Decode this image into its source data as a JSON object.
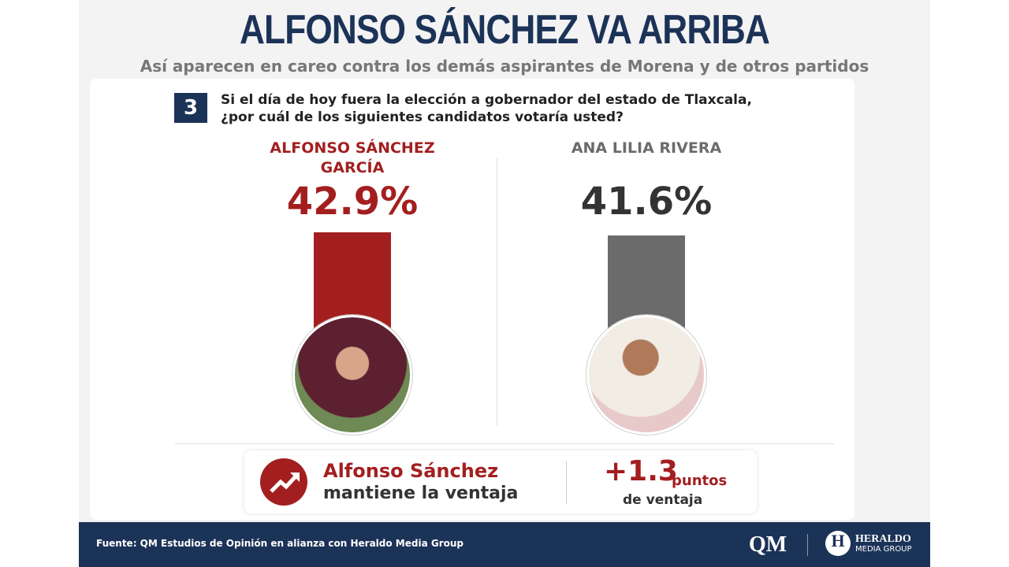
{
  "chart_data": {
    "type": "bar",
    "title": "ALFONSO SÁNCHEZ VA ARRIBA",
    "subtitle": "Así aparecen en careo contra los demás aspirantes de Morena y de otros partidos",
    "question_number": "3",
    "question": "Si el día de hoy fuera la elección a gobernador del estado de Tlaxcala, ¿por cuál de los siguientes candidatos votaría usted?",
    "categories": [
      "ALFONSO SÁNCHEZ GARCÍA",
      "ANA LILIA RIVERA"
    ],
    "values": [
      42.9,
      41.6
    ],
    "value_labels": [
      "42.9%",
      "41.6%"
    ],
    "colors": [
      "#a31f1f",
      "#6b6b6b"
    ],
    "highlight": {
      "name": "Alfonso Sánchez",
      "text": "mantiene la ventaja",
      "lead": "+1.3",
      "lead_unit": "puntos",
      "lead_text": "de ventaja"
    },
    "source": "Fuente: QM Estudios de Opinión en alianza con Heraldo Media Group",
    "logos": [
      "QM",
      "H",
      "HERALDO",
      "MEDIA GROUP"
    ]
  }
}
